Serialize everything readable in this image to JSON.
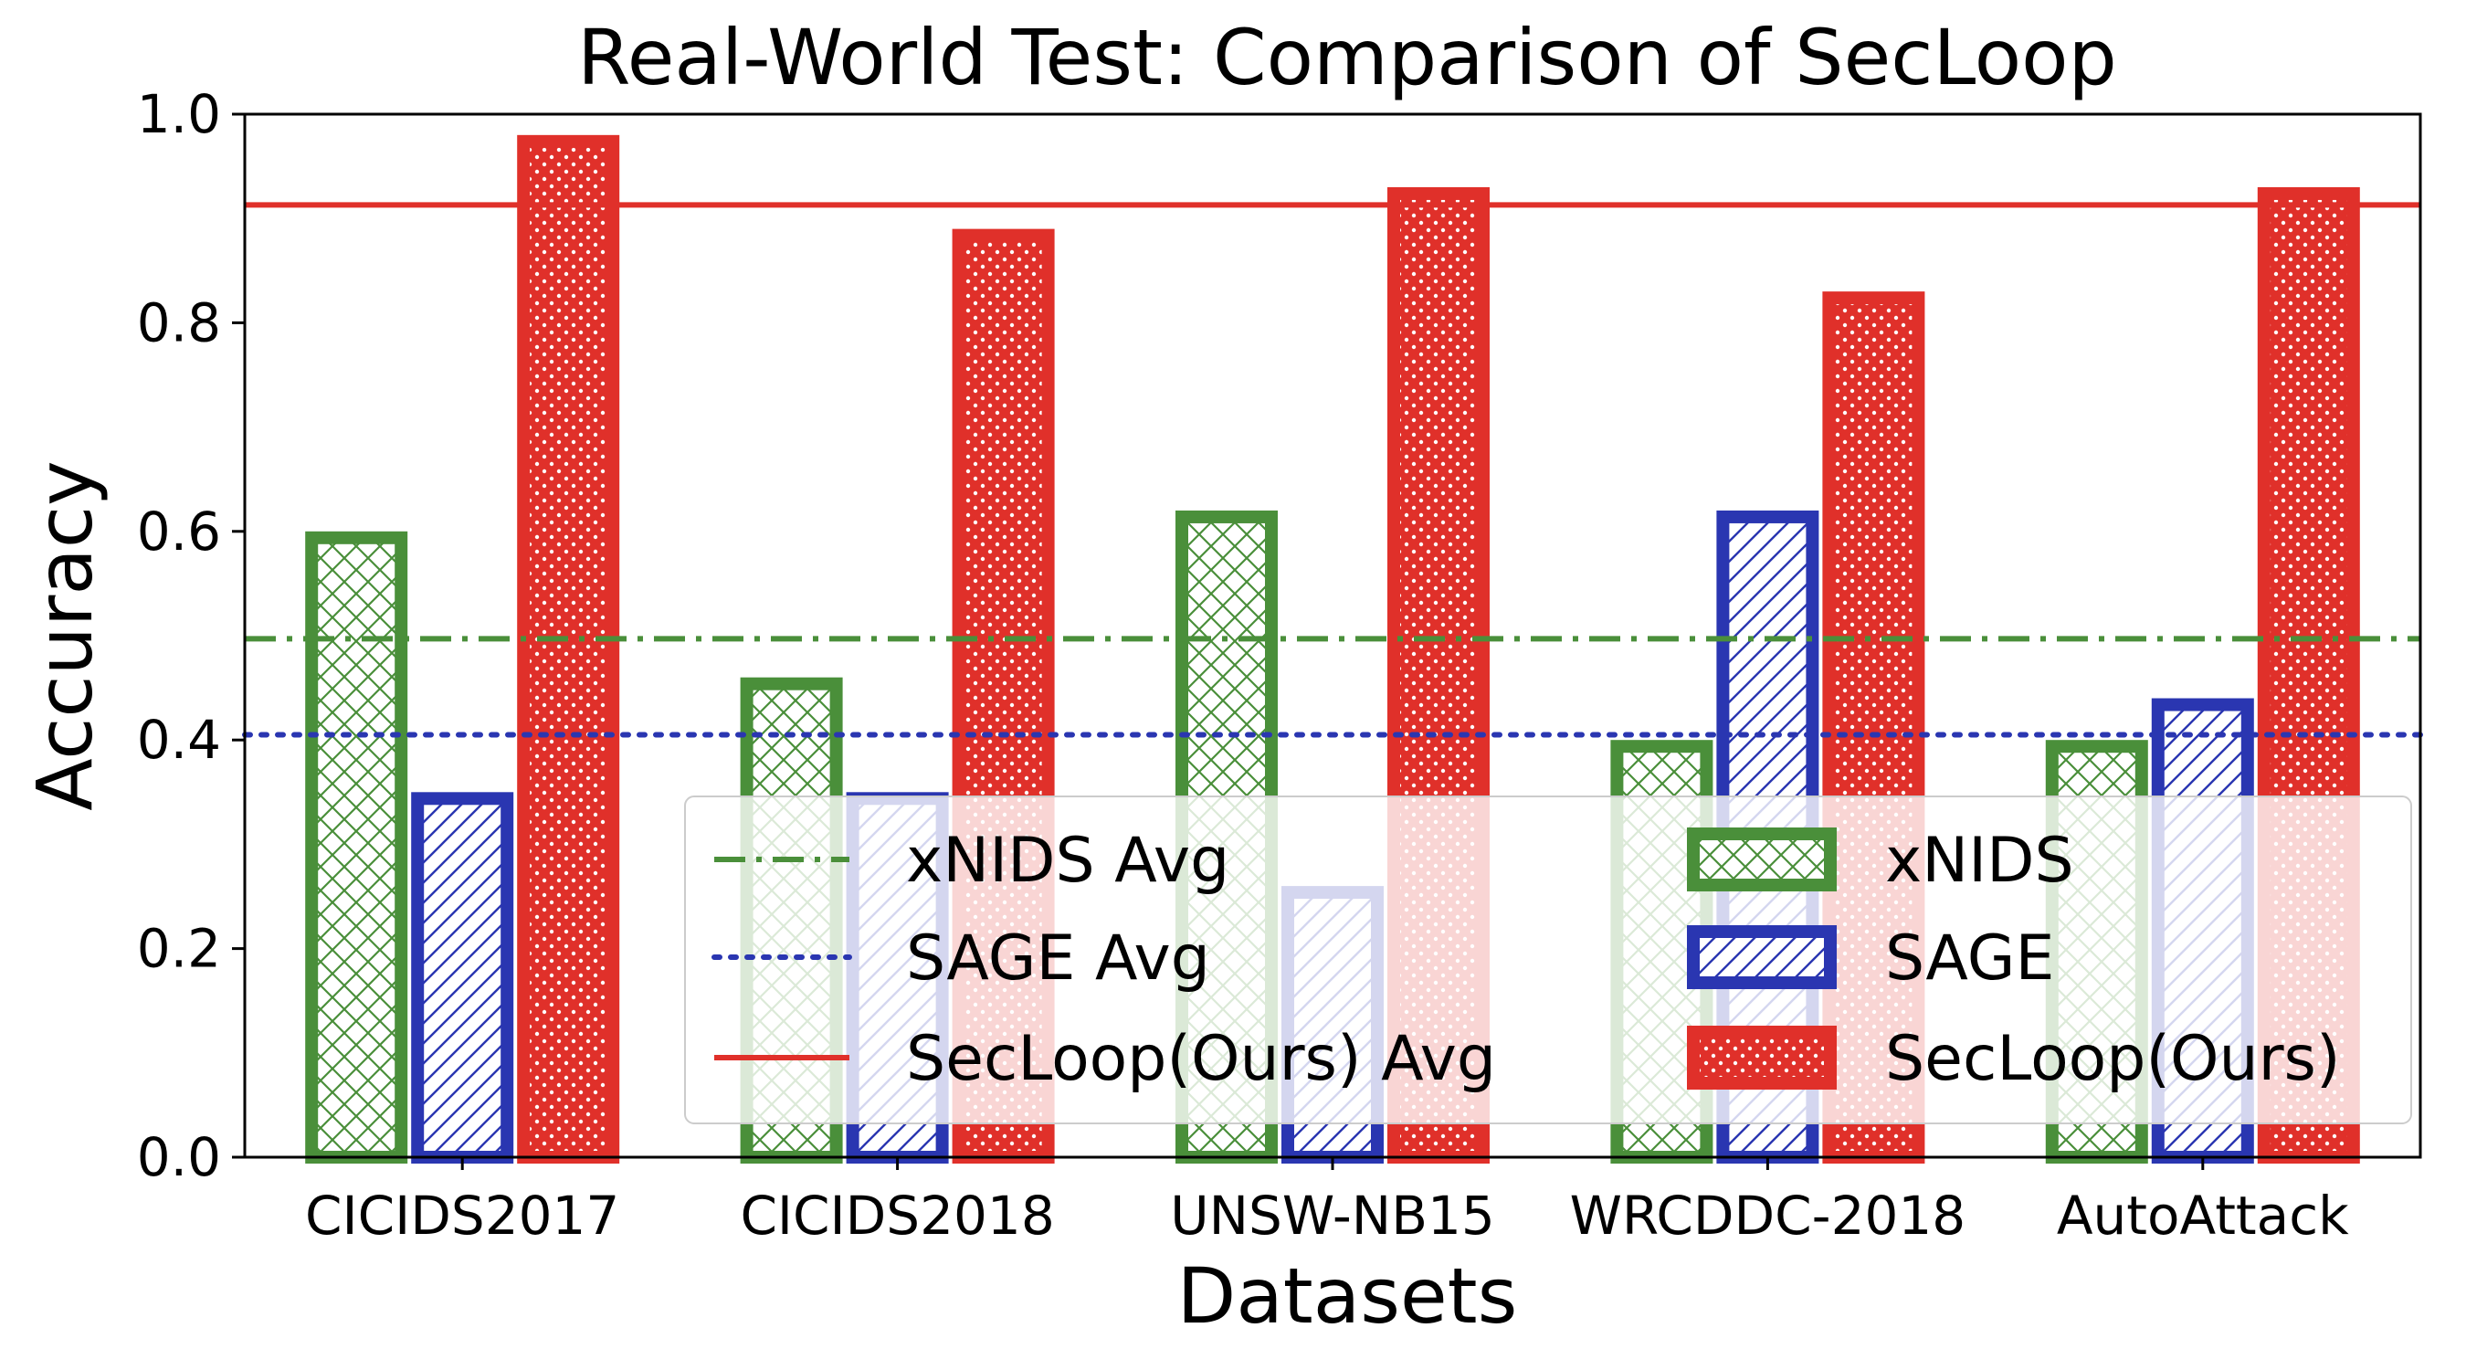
{
  "chart_data": {
    "type": "bar",
    "title": "Real-World Test: Comparison of SecLoop",
    "xlabel": "Datasets",
    "ylabel": "Accuracy",
    "ylim": [
      0,
      1.0
    ],
    "yticks": [
      "0.0",
      "0.2",
      "0.4",
      "0.6",
      "0.8",
      "1.0"
    ],
    "categories": [
      "CICIDS2017",
      "CICIDS2018",
      "UNSW-NB15",
      "WRCDDC-2018",
      "AutoAttack"
    ],
    "series": [
      {
        "name": "xNIDS",
        "color": "#4a8f3a",
        "pattern": "crosshatch",
        "values": [
          0.6,
          0.46,
          0.62,
          0.4,
          0.4
        ]
      },
      {
        "name": "SAGE",
        "color": "#2a36b1",
        "pattern": "diagonal",
        "values": [
          0.35,
          0.35,
          0.26,
          0.62,
          0.44
        ]
      },
      {
        "name": "SecLoop(Ours)",
        "color": "#e0302a",
        "pattern": "stars",
        "values": [
          0.98,
          0.89,
          0.93,
          0.83,
          0.93
        ]
      }
    ],
    "averages": [
      {
        "name": "xNIDS Avg",
        "value": 0.497,
        "color": "#4a8f3a",
        "style": "dashdot"
      },
      {
        "name": "SAGE Avg",
        "value": 0.405,
        "color": "#2a36b1",
        "style": "dotted"
      },
      {
        "name": "SecLoop(Ours) Avg",
        "value": 0.913,
        "color": "#e0302a",
        "style": "solid"
      }
    ],
    "legend_position": "lower-right",
    "grid": false
  }
}
